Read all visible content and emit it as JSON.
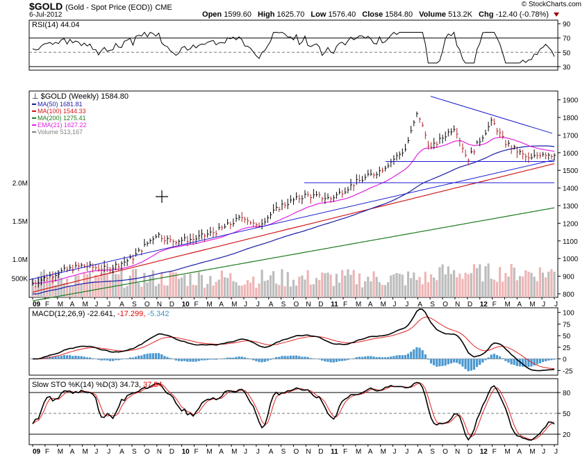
{
  "header": {
    "symbol": "$GOLD",
    "name": "(Gold - Spot Price (EOD))",
    "exchange": "CME",
    "date": "6-Jul-2012",
    "copyright": "© StockCharts.com",
    "open_label": "Open",
    "open": "1599.60",
    "high_label": "High",
    "high": "1625.70",
    "low_label": "Low",
    "low": "1576.40",
    "close_label": "Close",
    "close": "1584.80",
    "volume_label": "Volume",
    "volume": "513.2K",
    "chg_label": "Chg",
    "chg": "-12.40 (-0.78%)"
  },
  "chart_data": [
    {
      "panel": "rsi",
      "type": "line",
      "title": "RSI(14) 44.04",
      "yticks": [
        30,
        50,
        70,
        90
      ],
      "ylim": [
        25,
        95
      ],
      "ref_lines": [
        70,
        50,
        30
      ],
      "last": 44.04
    },
    {
      "panel": "price",
      "type": "ohlc",
      "title": "$GOLD (Weekly) 1584.80",
      "legend": [
        {
          "name": "MA(50) 1681.81",
          "color": "#1a1aa8"
        },
        {
          "name": "MA(100) 1544.33",
          "color": "#d21515"
        },
        {
          "name": "MA(200) 1275.41",
          "color": "#1f7a1f"
        },
        {
          "name": "EMA(21) 1627.22",
          "color": "#e020e0"
        },
        {
          "name": "Volume 513,167",
          "color": "#7f7f7f"
        }
      ],
      "yticks": [
        800,
        900,
        1000,
        1100,
        1200,
        1300,
        1400,
        1500,
        1600,
        1700,
        1800,
        1900
      ],
      "ylim": [
        780,
        1950
      ],
      "volume_ticks": [
        "500K",
        "1.0M",
        "1.5M",
        "2.0M"
      ],
      "x_labels": [
        "09",
        "F",
        "M",
        "A",
        "M",
        "J",
        "J",
        "A",
        "S",
        "O",
        "N",
        "D",
        "10",
        "F",
        "M",
        "A",
        "M",
        "J",
        "J",
        "A",
        "S",
        "O",
        "N",
        "D",
        "11",
        "F",
        "M",
        "A",
        "M",
        "J",
        "J",
        "A",
        "S",
        "O",
        "N",
        "D",
        "12",
        "F",
        "M",
        "A",
        "M",
        "J",
        "J"
      ],
      "close_series": [
        {
          "date": "2009-01",
          "close": 860
        },
        {
          "date": "2009-03",
          "close": 920
        },
        {
          "date": "2009-05",
          "close": 960
        },
        {
          "date": "2009-07",
          "close": 940
        },
        {
          "date": "2009-09",
          "close": 1000
        },
        {
          "date": "2009-11",
          "close": 1140
        },
        {
          "date": "2009-12",
          "close": 1100
        },
        {
          "date": "2010-02",
          "close": 1110
        },
        {
          "date": "2010-04",
          "close": 1160
        },
        {
          "date": "2010-06",
          "close": 1240
        },
        {
          "date": "2010-07",
          "close": 1180
        },
        {
          "date": "2010-09",
          "close": 1300
        },
        {
          "date": "2010-11",
          "close": 1360
        },
        {
          "date": "2011-01",
          "close": 1340
        },
        {
          "date": "2011-03",
          "close": 1430
        },
        {
          "date": "2011-05",
          "close": 1500
        },
        {
          "date": "2011-07",
          "close": 1620
        },
        {
          "date": "2011-08",
          "close": 1830
        },
        {
          "date": "2011-09",
          "close": 1620
        },
        {
          "date": "2011-11",
          "close": 1750
        },
        {
          "date": "2011-12",
          "close": 1560
        },
        {
          "date": "2012-02",
          "close": 1780
        },
        {
          "date": "2012-03",
          "close": 1660
        },
        {
          "date": "2012-05",
          "close": 1560
        },
        {
          "date": "2012-06",
          "close": 1600
        },
        {
          "date": "2012-07",
          "close": 1585
        }
      ],
      "last_close": 1584.8
    },
    {
      "panel": "macd",
      "type": "line",
      "title": "MACD(12,26,9) -22.641, -17.299, -5.342",
      "values": [
        "-22.641",
        "-17.299",
        "-5.342"
      ],
      "yticks": [
        -25,
        0,
        25,
        50,
        75,
        100
      ],
      "ylim": [
        -35,
        110
      ]
    },
    {
      "panel": "sto",
      "type": "line",
      "title": "Slow STO %K(14) %D(3) 34.73, 37.84",
      "values": [
        "34.73",
        "37.84"
      ],
      "yticks": [
        20,
        50,
        80
      ],
      "ylim": [
        5,
        100
      ]
    }
  ]
}
